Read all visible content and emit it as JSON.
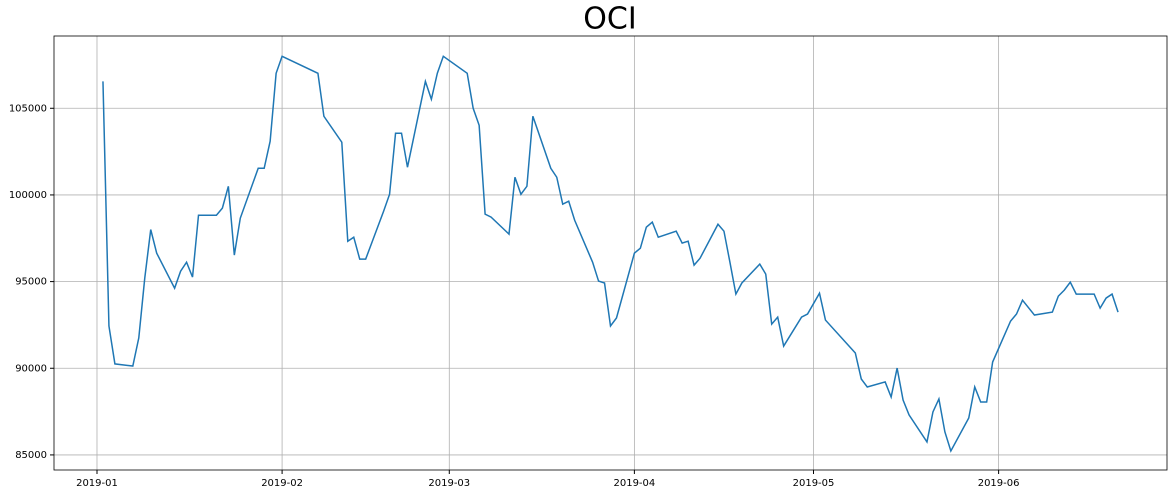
{
  "chart_data": {
    "type": "line",
    "title": "OCI",
    "x": [
      1,
      2,
      3,
      6,
      7,
      8,
      9,
      10,
      13,
      14,
      15,
      16,
      17,
      20,
      21,
      22,
      23,
      24,
      27,
      28,
      29,
      30,
      31,
      37,
      38,
      41,
      42,
      43,
      44,
      45,
      48,
      49,
      50,
      51,
      52,
      55,
      56,
      57,
      58,
      62,
      63,
      64,
      65,
      66,
      69,
      70,
      71,
      72,
      73,
      76,
      77,
      78,
      79,
      80,
      83,
      84,
      85,
      86,
      87,
      90,
      91,
      92,
      93,
      94,
      97,
      98,
      99,
      100,
      101,
      104,
      105,
      106,
      107,
      108,
      111,
      112,
      113,
      114,
      115,
      118,
      119,
      121,
      122,
      127,
      128,
      129,
      132,
      133,
      134,
      135,
      136,
      139,
      140,
      141,
      142,
      143,
      146,
      147,
      148,
      149,
      150,
      153,
      154,
      155,
      157,
      160,
      161,
      162,
      163,
      164,
      167,
      168,
      169,
      170,
      171
    ],
    "series": [
      {
        "name": "OCI",
        "color": "#1f77b4",
        "values": [
          106550,
          92440,
          90250,
          90130,
          91750,
          95200,
          98000,
          96640,
          94620,
          95600,
          96120,
          95260,
          98830,
          98830,
          99240,
          100500,
          96530,
          98660,
          101540,
          101540,
          103100,
          107020,
          108000,
          107020,
          104540,
          103040,
          97330,
          97560,
          96300,
          96300,
          99060,
          100040,
          103560,
          103560,
          101600,
          106550,
          105520,
          107020,
          108000,
          107020,
          105000,
          104020,
          98890,
          98720,
          97740,
          101020,
          100040,
          100500,
          104540,
          101540,
          101020,
          99470,
          99640,
          98540,
          96120,
          95030,
          94920,
          92440,
          92900,
          96640,
          96930,
          98140,
          98430,
          97560,
          97910,
          97220,
          97330,
          95950,
          96350,
          98310,
          97910,
          96120,
          94280,
          94920,
          96010,
          95430,
          92550,
          92950,
          91280,
          92950,
          93130,
          94330,
          92780,
          90880,
          89380,
          88920,
          89210,
          88340,
          90010,
          88170,
          87310,
          85750,
          87480,
          88230,
          86330,
          85230,
          87130,
          88920,
          88050,
          88050,
          90360,
          92720,
          93130,
          93930,
          93070,
          93240,
          94160,
          94510,
          94970,
          94280,
          94280,
          93470,
          94050,
          94280,
          93240
        ]
      }
    ],
    "xlim": [
      -7.2,
      179.2
    ],
    "xticks": [
      {
        "value": 0,
        "label": "2019-01"
      },
      {
        "value": 31,
        "label": "2019-02"
      },
      {
        "value": 59,
        "label": "2019-03"
      },
      {
        "value": 90,
        "label": "2019-04"
      },
      {
        "value": 120,
        "label": "2019-05"
      },
      {
        "value": 151,
        "label": "2019-06"
      }
    ],
    "ylim": [
      84130,
      109170
    ],
    "yticks": [
      85000,
      90000,
      95000,
      100000,
      105000
    ],
    "grid": true
  }
}
